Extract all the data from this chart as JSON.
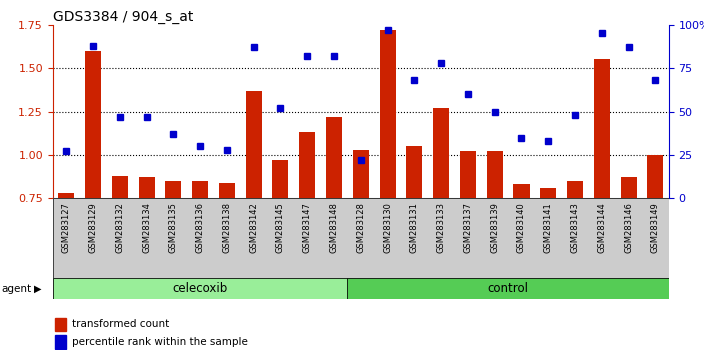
{
  "title": "GDS3384 / 904_s_at",
  "samples": [
    "GSM283127",
    "GSM283129",
    "GSM283132",
    "GSM283134",
    "GSM283135",
    "GSM283136",
    "GSM283138",
    "GSM283142",
    "GSM283145",
    "GSM283147",
    "GSM283148",
    "GSM283128",
    "GSM283130",
    "GSM283131",
    "GSM283133",
    "GSM283137",
    "GSM283139",
    "GSM283140",
    "GSM283141",
    "GSM283143",
    "GSM283144",
    "GSM283146",
    "GSM283149"
  ],
  "bar_values": [
    0.78,
    1.6,
    0.88,
    0.87,
    0.85,
    0.85,
    0.84,
    1.37,
    0.97,
    1.13,
    1.22,
    1.03,
    1.72,
    1.05,
    1.27,
    1.02,
    1.02,
    0.83,
    0.81,
    0.85,
    1.55,
    0.87,
    1.0
  ],
  "percentile_values": [
    27,
    88,
    47,
    47,
    37,
    30,
    28,
    87,
    52,
    82,
    82,
    22,
    97,
    68,
    78,
    60,
    50,
    35,
    33,
    48,
    95,
    87,
    68
  ],
  "celecoxib_count": 11,
  "control_count": 12,
  "ylim_left": [
    0.75,
    1.75
  ],
  "ylim_right": [
    0,
    100
  ],
  "yticks_left": [
    0.75,
    1.0,
    1.25,
    1.5,
    1.75
  ],
  "yticks_right": [
    0,
    25,
    50,
    75,
    100
  ],
  "ytick_labels_right": [
    "0",
    "25",
    "50",
    "75",
    "100%"
  ],
  "bar_color": "#cc2200",
  "dot_color": "#0000cc",
  "celecoxib_color": "#99ee99",
  "control_color": "#55cc55",
  "label_bg_color": "#cccccc",
  "title_color": "#000000",
  "left_axis_color": "#cc2200",
  "right_axis_color": "#0000cc",
  "legend_bar_label": "transformed count",
  "legend_dot_label": "percentile rank within the sample",
  "agent_label": "agent",
  "celecoxib_label": "celecoxib",
  "control_label": "control",
  "gridline_values": [
    1.0,
    1.25,
    1.5
  ]
}
